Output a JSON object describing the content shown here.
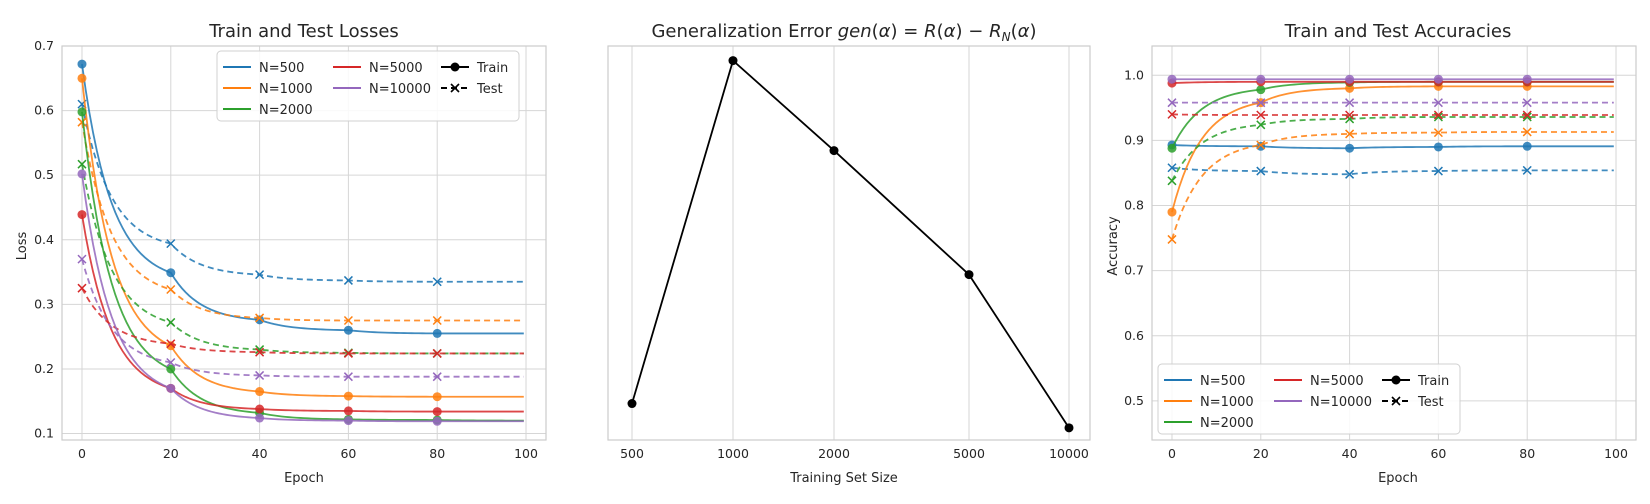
{
  "chart_data": [
    {
      "type": "line",
      "title": "Train and Test Losses",
      "xlabel": "Epoch",
      "ylabel": "Loss",
      "xlim": [
        -4.5,
        104.5
      ],
      "ylim": [
        0.09,
        0.7
      ],
      "xticks": [
        0,
        20,
        40,
        60,
        80,
        100
      ],
      "yticks": [
        0.1,
        0.2,
        0.3,
        0.4,
        0.5,
        0.6,
        0.7
      ],
      "grid": true,
      "legend": {
        "placement": "top-right",
        "entries": [
          "N=500",
          "N=1000",
          "N=2000",
          "N=5000",
          "N=10000"
        ],
        "style_entries": [
          "Train",
          "Test"
        ]
      },
      "marker_epochs": [
        0,
        20,
        40,
        60,
        80
      ],
      "series": [
        {
          "name": "N=500",
          "color": "#1f77b4",
          "train": [
            0.672,
            0.349,
            0.276,
            0.26,
            0.255
          ],
          "train_end": 0.255,
          "test": [
            0.61,
            0.394,
            0.346,
            0.337,
            0.335
          ],
          "test_end": 0.335
        },
        {
          "name": "N=1000",
          "color": "#ff7f0e",
          "train": [
            0.65,
            0.236,
            0.165,
            0.158,
            0.157
          ],
          "train_end": 0.157,
          "test": [
            0.582,
            0.323,
            0.279,
            0.275,
            0.275
          ],
          "test_end": 0.275
        },
        {
          "name": "N=2000",
          "color": "#2ca02c",
          "train": [
            0.598,
            0.2,
            0.132,
            0.122,
            0.121
          ],
          "train_end": 0.12,
          "test": [
            0.517,
            0.272,
            0.23,
            0.225,
            0.224
          ],
          "test_end": 0.224
        },
        {
          "name": "N=5000",
          "color": "#d62728",
          "train": [
            0.439,
            0.17,
            0.138,
            0.135,
            0.134
          ],
          "train_end": 0.134,
          "test": [
            0.325,
            0.239,
            0.226,
            0.224,
            0.224
          ],
          "test_end": 0.224
        },
        {
          "name": "N=10000",
          "color": "#9467bd",
          "train": [
            0.502,
            0.17,
            0.124,
            0.12,
            0.119
          ],
          "train_end": 0.119,
          "test": [
            0.37,
            0.21,
            0.19,
            0.188,
            0.188
          ],
          "test_end": 0.188
        }
      ]
    },
    {
      "type": "line",
      "title": "Generalization Error",
      "title_math": {
        "lhs": "gen",
        "arg": "α",
        "r": "R",
        "rhat": "R",
        "sub": "N"
      },
      "xlabel": "Training Set Size",
      "ylabel": "",
      "categories": [
        "500",
        "1000",
        "2000",
        "5000",
        "10000"
      ],
      "values": [
        0.245,
        0.95,
        0.765,
        0.51,
        0.195
      ],
      "ylim": [
        0.17,
        0.98
      ],
      "color": "#000000",
      "grid": true
    },
    {
      "type": "line",
      "title": "Train and Test Accuracies",
      "xlabel": "Epoch",
      "ylabel": "Accuracy",
      "xlim": [
        -4.5,
        104.5
      ],
      "ylim": [
        0.44,
        1.045
      ],
      "xticks": [
        0,
        20,
        40,
        60,
        80,
        100
      ],
      "yticks": [
        0.5,
        0.6,
        0.7,
        0.8,
        0.9,
        1.0
      ],
      "ytick_labels": [
        "0.5",
        "0.6",
        "0.7",
        "0.8",
        "0.9",
        "1.0"
      ],
      "grid": true,
      "legend": {
        "placement": "bottom-left",
        "entries": [
          "N=500",
          "N=1000",
          "N=2000",
          "N=5000",
          "N=10000"
        ],
        "style_entries": [
          "Train",
          "Test"
        ]
      },
      "marker_epochs": [
        0,
        20,
        40,
        60,
        80
      ],
      "series": [
        {
          "name": "N=500",
          "color": "#1f77b4",
          "train": [
            0.893,
            0.891,
            0.888,
            0.89,
            0.891
          ],
          "train_end": 0.891,
          "test": [
            0.858,
            0.853,
            0.848,
            0.853,
            0.854
          ],
          "test_end": 0.854
        },
        {
          "name": "N=1000",
          "color": "#ff7f0e",
          "train": [
            0.79,
            0.958,
            0.98,
            0.983,
            0.983
          ],
          "train_end": 0.983,
          "test": [
            0.748,
            0.893,
            0.91,
            0.912,
            0.913
          ],
          "test_end": 0.913
        },
        {
          "name": "N=2000",
          "color": "#2ca02c",
          "train": [
            0.888,
            0.978,
            0.989,
            0.99,
            0.99
          ],
          "train_end": 0.99,
          "test": [
            0.838,
            0.924,
            0.933,
            0.936,
            0.936
          ],
          "test_end": 0.936
        },
        {
          "name": "N=5000",
          "color": "#d62728",
          "train": [
            0.988,
            0.99,
            0.99,
            0.99,
            0.99
          ],
          "train_end": 0.99,
          "test": [
            0.94,
            0.939,
            0.939,
            0.939,
            0.939
          ],
          "test_end": 0.939
        },
        {
          "name": "N=10000",
          "color": "#9467bd",
          "train": [
            0.994,
            0.994,
            0.994,
            0.994,
            0.994
          ],
          "train_end": 0.994,
          "test": [
            0.958,
            0.958,
            0.958,
            0.958,
            0.958
          ],
          "test_end": 0.958
        }
      ]
    }
  ]
}
